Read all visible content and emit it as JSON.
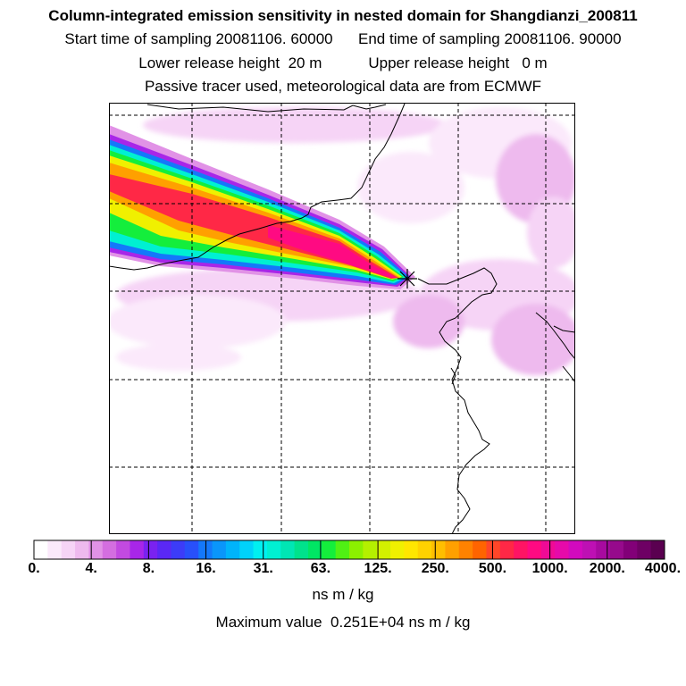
{
  "header": {
    "title": "Column-integrated emission sensitivity in nested domain for Shangdianzi_200811",
    "start_label": "Start time of sampling",
    "start_value": "20081106. 60000",
    "end_label": "End time of sampling",
    "end_value": "20081106. 90000",
    "lower_label": "Lower release height",
    "lower_value": "20 m",
    "upper_label": "Upper release height",
    "upper_value": "0 m",
    "tracer_note": "Passive tracer used, meteorological data are from ECMWF"
  },
  "map": {
    "release_site_marker": "star-marker",
    "plume_direction": "from northwest toward release site"
  },
  "colorbar": {
    "tick_labels": [
      "0.",
      "4.",
      "8.",
      "16.",
      "31.",
      "63.",
      "125.",
      "250.",
      "500.",
      "1000.",
      "2000.",
      "4000."
    ],
    "colors": [
      "#ffffff",
      "#fbe9fb",
      "#f6d4f6",
      "#eebaee",
      "#e192e6",
      "#d46ee0",
      "#c24ae0",
      "#a826e8",
      "#7a22f0",
      "#5a28f5",
      "#3c3cf8",
      "#2850fa",
      "#1478fa",
      "#0a96fa",
      "#00b4fa",
      "#00d2fa",
      "#00f0f0",
      "#00f0d2",
      "#00e6b4",
      "#00e28c",
      "#00e664",
      "#14ee3c",
      "#50f014",
      "#8cf000",
      "#b4f000",
      "#d2f000",
      "#f0f000",
      "#ffe600",
      "#ffd200",
      "#ffbe00",
      "#ffa000",
      "#ff8200",
      "#ff6400",
      "#ff4628",
      "#ff2846",
      "#ff1464",
      "#ff0a82",
      "#f00a96",
      "#e60aaa",
      "#d20abe",
      "#be10b4",
      "#a80aa0",
      "#960a8c",
      "#820078",
      "#6e0064",
      "#5a0050"
    ],
    "units": "ns m / kg"
  },
  "footer": {
    "max_label": "Maximum value",
    "max_value": "0.251E+04",
    "max_units": "ns m / kg"
  }
}
